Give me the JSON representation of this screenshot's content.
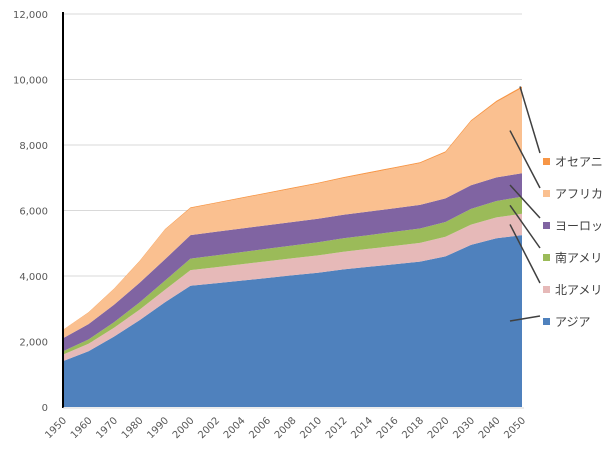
{
  "chart_data": {
    "type": "area",
    "stacked": true,
    "categories": [
      "1950",
      "1960",
      "1970",
      "1980",
      "1990",
      "2000",
      "2002",
      "2004",
      "2006",
      "2008",
      "2010",
      "2012",
      "2014",
      "2016",
      "2018",
      "2020",
      "2030",
      "2040",
      "2050"
    ],
    "series": [
      {
        "name": "アジア",
        "color": "#4f81bd",
        "values": [
          1400,
          1700,
          2150,
          2650,
          3200,
          3700,
          3780,
          3860,
          3940,
          4020,
          4100,
          4200,
          4280,
          4360,
          4440,
          4600,
          4950,
          5150,
          5250
        ]
      },
      {
        "name": "北アメリ",
        "color": "#e6b9b8",
        "values": [
          200,
          230,
          270,
          320,
          380,
          480,
          490,
          500,
          510,
          520,
          530,
          540,
          550,
          560,
          570,
          600,
          620,
          640,
          650
        ]
      },
      {
        "name": "南アメリ",
        "color": "#9bbb59",
        "values": [
          100,
          130,
          170,
          220,
          280,
          350,
          360,
          370,
          380,
          390,
          400,
          410,
          420,
          430,
          440,
          450,
          480,
          500,
          520
        ]
      },
      {
        "name": "ヨーロッ",
        "color": "#8064a2",
        "values": [
          400,
          470,
          530,
          600,
          650,
          720,
          720,
          720,
          720,
          720,
          720,
          720,
          720,
          720,
          720,
          720,
          720,
          720,
          720
        ]
      },
      {
        "name": "アフリカ",
        "color": "#fac090",
        "values": [
          250,
          350,
          480,
          650,
          900,
          820,
          870,
          920,
          970,
          1020,
          1070,
          1120,
          1170,
          1220,
          1270,
          1400,
          1950,
          2300,
          2600
        ]
      },
      {
        "name": "オセアニ",
        "color": "#f79646",
        "values": [
          10,
          12,
          15,
          18,
          21,
          24,
          25,
          26,
          27,
          28,
          29,
          30,
          31,
          32,
          33,
          34,
          38,
          42,
          46
        ]
      }
    ],
    "xlabel": "",
    "ylabel": "",
    "ylim": [
      0,
      12000
    ],
    "yticks": [
      0,
      2000,
      4000,
      6000,
      8000,
      10000,
      12000
    ],
    "ytick_labels": [
      "0",
      "2,000",
      "4,000",
      "6,000",
      "8,000",
      "10,000",
      "12,000"
    ],
    "grid": true,
    "legend_position": "right"
  }
}
